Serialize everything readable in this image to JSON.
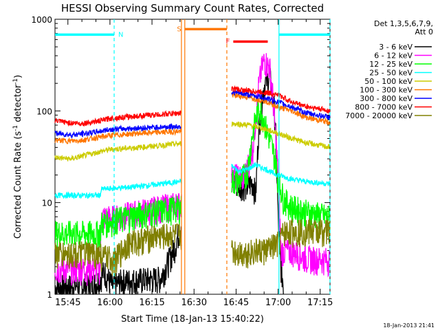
{
  "chart_data": {
    "type": "line",
    "title": "HESSI Observing Summary Count Rates, Corrected",
    "xlabel": "Start Time (18-Jan-13 15:40:22)",
    "ylabel_main": "Corrected Count Rate (s",
    "ylabel_sup1": "-1",
    "ylabel_mid": " detector",
    "ylabel_sup2": "-1",
    "ylabel_end": ")",
    "y_scale": "log",
    "ylim": [
      1,
      1000
    ],
    "xlim_minutes": [
      15.633,
      17.3
    ],
    "x_ticks": [
      {
        "label": "15:45",
        "minutes": 945
      },
      {
        "label": "16:00",
        "minutes": 960
      },
      {
        "label": "16:15",
        "minutes": 975
      },
      {
        "label": "16:30",
        "minutes": 990
      },
      {
        "label": "16:45",
        "minutes": 1005
      },
      {
        "label": "17:00",
        "minutes": 1020
      },
      {
        "label": "17:15",
        "minutes": 1035
      }
    ],
    "y_ticks": [
      {
        "label": "1",
        "value": 1
      },
      {
        "label": "10",
        "value": 10
      },
      {
        "label": "100",
        "value": 100
      },
      {
        "label": "1000",
        "value": 1000
      }
    ],
    "legend_header": [
      "Det 1,3,5,6,7,9,",
      "Att 0"
    ],
    "legend_position": "right",
    "series": [
      {
        "name": "3 - 6 keV",
        "color": "#000000",
        "points": [
          [
            940.4,
            1.2
          ],
          [
            955,
            1.3
          ],
          [
            958,
            1.8
          ],
          [
            961,
            1.2
          ],
          [
            964,
            1.4
          ],
          [
            978,
            1.5
          ],
          [
            983,
            3.2
          ],
          [
            985.5,
            6
          ],
          [
            1003.5,
            17
          ],
          [
            1006,
            16
          ],
          [
            1007,
            16
          ],
          [
            1009,
            15
          ],
          [
            1011,
            17
          ],
          [
            1012,
            12
          ],
          [
            1013,
            60
          ],
          [
            1014,
            120
          ],
          [
            1015,
            190
          ],
          [
            1016,
            220
          ],
          [
            1017,
            240
          ],
          [
            1018,
            160
          ],
          [
            1019,
            80
          ],
          [
            1020,
            7
          ],
          [
            1021,
            2
          ],
          [
            1022,
            1.2
          ]
        ]
      },
      {
        "name": "6 - 12 keV",
        "color": "#ff00ff",
        "points": [
          [
            940.4,
            1.9
          ],
          [
            956.5,
            1.9
          ],
          [
            957,
            7
          ],
          [
            962,
            7
          ],
          [
            970,
            8
          ],
          [
            985.5,
            10
          ],
          [
            1003.5,
            20
          ],
          [
            1008,
            19
          ],
          [
            1011,
            40
          ],
          [
            1013,
            180
          ],
          [
            1014,
            280
          ],
          [
            1015,
            360
          ],
          [
            1016,
            330
          ],
          [
            1017,
            300
          ],
          [
            1018,
            160
          ],
          [
            1019,
            60
          ],
          [
            1020,
            20
          ],
          [
            1021,
            3
          ],
          [
            1025,
            3
          ],
          [
            1030,
            2.5
          ],
          [
            1038.5,
            2.4
          ]
        ]
      },
      {
        "name": "12 - 25 keV",
        "color": "#00ff00",
        "points": [
          [
            940.4,
            4.7
          ],
          [
            956.5,
            4.7
          ],
          [
            957,
            6
          ],
          [
            970,
            7.5
          ],
          [
            985.5,
            9
          ],
          [
            1003.5,
            18
          ],
          [
            1006,
            17
          ],
          [
            1009,
            22
          ],
          [
            1011,
            60
          ],
          [
            1013,
            110
          ],
          [
            1014,
            100
          ],
          [
            1015,
            80
          ],
          [
            1016,
            60
          ],
          [
            1017,
            50
          ],
          [
            1019,
            30
          ],
          [
            1020,
            18
          ],
          [
            1022,
            11
          ],
          [
            1025,
            9
          ],
          [
            1030,
            8
          ],
          [
            1038.5,
            7
          ]
        ]
      },
      {
        "name": "25 - 50 keV",
        "color": "#00ffff",
        "points": [
          [
            940.4,
            12
          ],
          [
            956.5,
            12
          ],
          [
            957,
            14
          ],
          [
            970,
            15
          ],
          [
            985.5,
            17
          ],
          [
            1003.5,
            25
          ],
          [
            1006,
            22
          ],
          [
            1009,
            23
          ],
          [
            1012,
            26
          ],
          [
            1014,
            24
          ],
          [
            1016,
            23
          ],
          [
            1018,
            21
          ],
          [
            1020,
            20
          ],
          [
            1025,
            18
          ],
          [
            1030,
            17
          ],
          [
            1038.5,
            16
          ]
        ]
      },
      {
        "name": "50 - 100 keV",
        "color": "#cccc00",
        "points": [
          [
            940.4,
            31
          ],
          [
            946,
            30
          ],
          [
            950,
            32
          ],
          [
            956.5,
            36
          ],
          [
            960,
            38
          ],
          [
            970,
            40
          ],
          [
            985.5,
            44
          ],
          [
            1003.5,
            73
          ],
          [
            1010,
            70
          ],
          [
            1015,
            64
          ],
          [
            1020,
            57
          ],
          [
            1025,
            50
          ],
          [
            1030,
            45
          ],
          [
            1038.5,
            40
          ]
        ]
      },
      {
        "name": "100 - 300 keV",
        "color": "#ff7700",
        "points": [
          [
            940.4,
            48
          ],
          [
            946,
            47
          ],
          [
            950,
            48
          ],
          [
            956.5,
            52
          ],
          [
            960,
            54
          ],
          [
            970,
            57
          ],
          [
            985.5,
            60
          ],
          [
            1003.5,
            150
          ],
          [
            1010,
            140
          ],
          [
            1015,
            130
          ],
          [
            1020,
            110
          ],
          [
            1025,
            100
          ],
          [
            1030,
            85
          ],
          [
            1038.5,
            75
          ]
        ]
      },
      {
        "name": "300 - 800 keV",
        "color": "#0000ff",
        "points": [
          [
            940.4,
            57
          ],
          [
            946,
            55
          ],
          [
            950,
            56
          ],
          [
            956.5,
            60
          ],
          [
            960,
            63
          ],
          [
            970,
            65
          ],
          [
            985.5,
            68
          ],
          [
            1003.5,
            160
          ],
          [
            1010,
            150
          ],
          [
            1015,
            140
          ],
          [
            1020,
            125
          ],
          [
            1025,
            110
          ],
          [
            1030,
            95
          ],
          [
            1038.5,
            85
          ]
        ]
      },
      {
        "name": "800 - 7000 keV",
        "color": "#ff0000",
        "points": [
          [
            940.4,
            78
          ],
          [
            946,
            74
          ],
          [
            950,
            73
          ],
          [
            956.5,
            78
          ],
          [
            960,
            83
          ],
          [
            970,
            88
          ],
          [
            985.5,
            95
          ],
          [
            1003.5,
            175
          ],
          [
            1010,
            165
          ],
          [
            1015,
            160
          ],
          [
            1020,
            150
          ],
          [
            1025,
            125
          ],
          [
            1030,
            112
          ],
          [
            1038.5,
            100
          ]
        ]
      },
      {
        "name": "7000 - 20000 keV",
        "color": "#808000",
        "points": [
          [
            940.4,
            2.8
          ],
          [
            956.5,
            2.8
          ],
          [
            957,
            2.6
          ],
          [
            962,
            2.4
          ],
          [
            966,
            3.6
          ],
          [
            975,
            4.3
          ],
          [
            985.5,
            4.5
          ],
          [
            1003.5,
            3
          ],
          [
            1008,
            2.9
          ],
          [
            1012,
            3
          ],
          [
            1016,
            3.1
          ],
          [
            1020,
            3.6
          ],
          [
            1022,
            4.8
          ],
          [
            1026,
            5
          ],
          [
            1030,
            5
          ],
          [
            1038.5,
            5
          ]
        ]
      }
    ],
    "annotations": [
      {
        "type": "band",
        "label": "N",
        "label_color": "#00ffff",
        "color": "#00ffff",
        "x0": 940.4,
        "x1": 961.5,
        "y": 680,
        "solid_end": false
      },
      {
        "type": "band",
        "label": "",
        "label_color": "#00ffff",
        "color": "#00ffff",
        "x0": 1020.3,
        "x1": 1038.5,
        "y": 680,
        "solid_end": false
      },
      {
        "type": "band",
        "label": "S",
        "label_color": "#ff7700",
        "color": "#ff7700",
        "x0": 986.7,
        "x1": 1001.7,
        "y": 780,
        "solid_end": false
      },
      {
        "type": "band",
        "label": "F",
        "label_color": "#ff0000",
        "color": "#ff0000",
        "x0": 1004,
        "x1": 1016.3,
        "y": 570,
        "solid_end": false
      }
    ],
    "vlines": [
      {
        "x": 961.5,
        "color": "#00ffff",
        "style": "dashed"
      },
      {
        "x": 985.5,
        "color": "#ff7700",
        "style": "solid"
      },
      {
        "x": 986.7,
        "color": "#ff7700",
        "style": "solid"
      },
      {
        "x": 1001.7,
        "color": "#ff7700",
        "style": "dashed"
      },
      {
        "x": 1020.3,
        "color": "#00ffff",
        "style": "solid"
      },
      {
        "x": 1038.5,
        "color": "#00ffff",
        "style": "dashed"
      }
    ]
  },
  "footer_timestamp": "18-Jan-2013 21:41"
}
